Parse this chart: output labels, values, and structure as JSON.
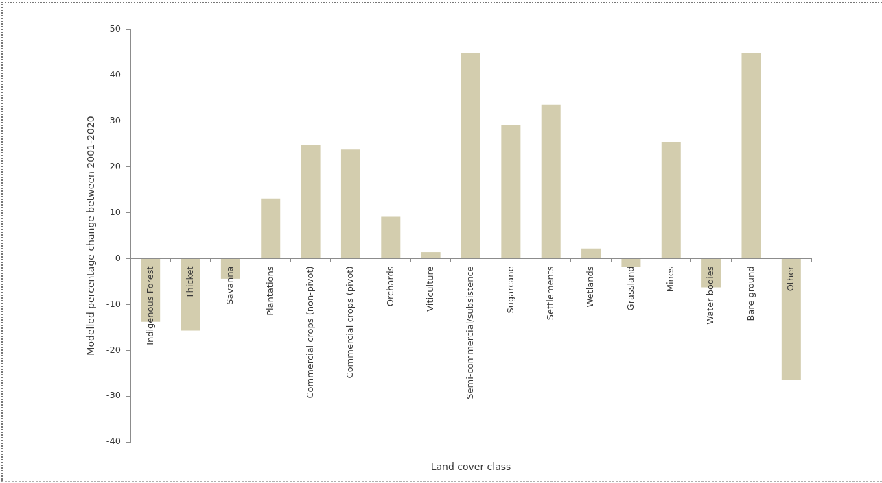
{
  "chart_data": {
    "type": "bar",
    "xlabel": "Land cover class",
    "ylabel": "Modelled percentage change between 2001-2020",
    "categories": [
      "Indigenous Forest",
      "Thicket",
      "Savanna",
      "Plantations",
      "Commercial crops (non-pivot)",
      "Commercial crops (pivot)",
      "Orchards",
      "Viticulture",
      "Semi-commercial/subsistence",
      "Sugarcane",
      "Settlements",
      "Wetlands",
      "Grassland",
      "Mines",
      "Water bodies",
      "Bare ground",
      "Other"
    ],
    "values": [
      -13.8,
      -15.7,
      -4.4,
      13.1,
      24.8,
      23.8,
      9.1,
      1.4,
      44.9,
      29.2,
      33.6,
      2.2,
      -1.8,
      25.5,
      -6.3,
      44.9,
      -26.5
    ],
    "color": "#d3cdae",
    "ylim": [
      -40,
      50
    ],
    "yticks": [
      -40,
      -30,
      -20,
      -10,
      0,
      10,
      20,
      30,
      40,
      50
    ]
  }
}
